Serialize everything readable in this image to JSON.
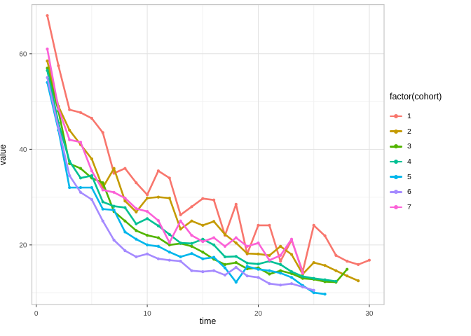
{
  "chart_data": {
    "type": "line",
    "xlabel": "time",
    "ylabel": "value",
    "x_ticks_major": [
      0,
      10,
      20,
      30
    ],
    "x_ticks_minor": [
      5,
      15,
      25
    ],
    "y_ticks_major": [
      20,
      40,
      60
    ],
    "y_ticks_minor": [
      10,
      30,
      50,
      70
    ],
    "xlim": [
      -0.39,
      31.33
    ],
    "ylim": [
      7.5,
      70.3
    ],
    "grid": "major+minor",
    "legend_title": "factor(cohort)",
    "legend_position": "right",
    "colors": {
      "panel_border": "#c6c6c6",
      "grid_major": "#e2e2e2",
      "grid_minor": "#f1f1f1",
      "tick_mark": "#333333",
      "tick_label": "#4d4d4d"
    },
    "series": [
      {
        "name": "1",
        "color": "#F8766D",
        "x_start": 1,
        "values": [
          68,
          57.5,
          48.3,
          47.7,
          46.5,
          43.5,
          35,
          36,
          33,
          30.5,
          35.5,
          34,
          26.3,
          28,
          29.7,
          29.4,
          22,
          28.5,
          18.1,
          24.1,
          24.1,
          16.6,
          21,
          14.4,
          24.1,
          21.9,
          17.8,
          16.6,
          15.9,
          16.8
        ]
      },
      {
        "name": "2",
        "color": "#C49A00",
        "x_start": 1,
        "values": [
          58.5,
          49,
          44,
          41,
          38,
          32,
          36,
          29.2,
          26.9,
          29.8,
          30,
          29.8,
          23.3,
          25,
          24.1,
          24.9,
          22.2,
          20.4,
          18.2,
          18.1,
          17.8,
          19.7,
          18,
          13.9,
          16.3,
          15.7,
          14.6,
          13.5,
          12.5
        ]
      },
      {
        "name": "3",
        "color": "#53B400",
        "x_start": 1,
        "values": [
          57,
          48,
          37,
          36,
          34,
          33,
          27,
          25,
          23,
          22,
          21.5,
          20,
          20.3,
          19.7,
          18.5,
          17,
          15.9,
          16.3,
          15,
          15.2,
          13.9,
          14.6,
          14,
          13,
          12.8,
          12.3,
          12.2,
          14.9
        ]
      },
      {
        "name": "4",
        "color": "#00C094",
        "x_start": 1,
        "values": [
          56.5,
          45.5,
          37.5,
          34,
          34.5,
          29,
          28.1,
          27.8,
          24.4,
          25.5,
          24,
          22.2,
          20.4,
          20.3,
          21.2,
          20,
          17.5,
          17.6,
          16.2,
          16,
          16.6,
          15.9,
          14.4,
          13.4,
          13,
          12.7,
          12.4
        ]
      },
      {
        "name": "5",
        "color": "#00B6EB",
        "x_start": 1,
        "values": [
          54,
          44,
          32,
          32,
          32,
          27.5,
          27.3,
          22.7,
          21.2,
          20,
          19.7,
          18.5,
          17.5,
          18.2,
          17.1,
          17.4,
          15.2,
          12.2,
          15.5,
          14.9,
          14.6,
          14.1,
          13.2,
          11.5,
          10,
          9.7
        ]
      },
      {
        "name": "6",
        "color": "#A58AFF",
        "x_start": 1,
        "values": [
          55,
          44.5,
          34.5,
          31,
          29.5,
          25,
          21,
          18.8,
          17.5,
          18.1,
          17.1,
          16.8,
          16.6,
          14.6,
          14.4,
          14.6,
          13.7,
          15.3,
          13.5,
          13.2,
          11.9,
          11.6,
          11.9,
          11.2,
          10.5
        ]
      },
      {
        "name": "7",
        "color": "#FB61D7",
        "x_start": 1,
        "values": [
          61,
          48.5,
          42,
          41.5,
          35.5,
          31.5,
          31,
          29.8,
          27.6,
          27,
          25.1,
          20.5,
          25,
          22,
          20.7,
          21.5,
          19.7,
          21.5,
          19.7,
          20.4,
          16.8,
          17.8,
          21.2,
          14.1
        ]
      }
    ]
  }
}
